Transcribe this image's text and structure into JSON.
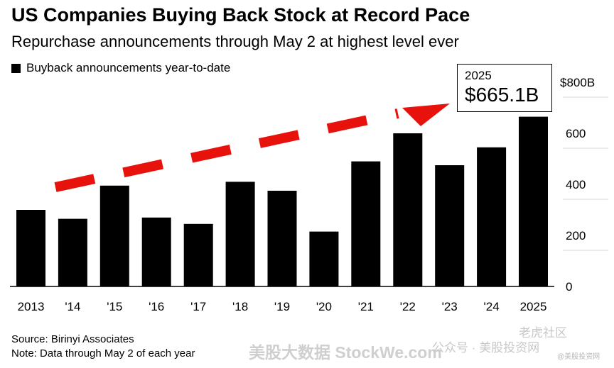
{
  "title": "US Companies Buying Back Stock at Record Pace",
  "subtitle": "Repurchase announcements through May 2 at highest level ever",
  "legend": {
    "label": "Buyback announcements year-to-date",
    "swatch_color": "#000000"
  },
  "callout": {
    "year": "2025",
    "value": "$665.1B"
  },
  "source": "Source: Birinyi Associates",
  "note": "Note: Data through May 2 of each year",
  "watermarks": {
    "cn_site": "美股大数据 StockWe.com",
    "wechat": "公众号 · 美股投资网",
    "community": "老虎社区",
    "handle": "@美股投资网"
  },
  "chart_data": {
    "type": "bar",
    "categories": [
      "2013",
      "'14",
      "'15",
      "'16",
      "'17",
      "'18",
      "'19",
      "'20",
      "'21",
      "'22",
      "'23",
      "'24",
      "2025"
    ],
    "values": [
      300,
      265,
      395,
      270,
      245,
      410,
      375,
      215,
      490,
      600,
      475,
      545,
      665.1
    ],
    "ylim": [
      0,
      800
    ],
    "y_ticks": [
      0,
      200,
      400,
      600,
      800
    ],
    "y_tick_labels": [
      "0",
      "200",
      "400",
      "600",
      "$800B"
    ],
    "y_axis_side": "right",
    "bar_color": "#000000",
    "trend_arrow_color": "#e8120c",
    "grid": true
  }
}
